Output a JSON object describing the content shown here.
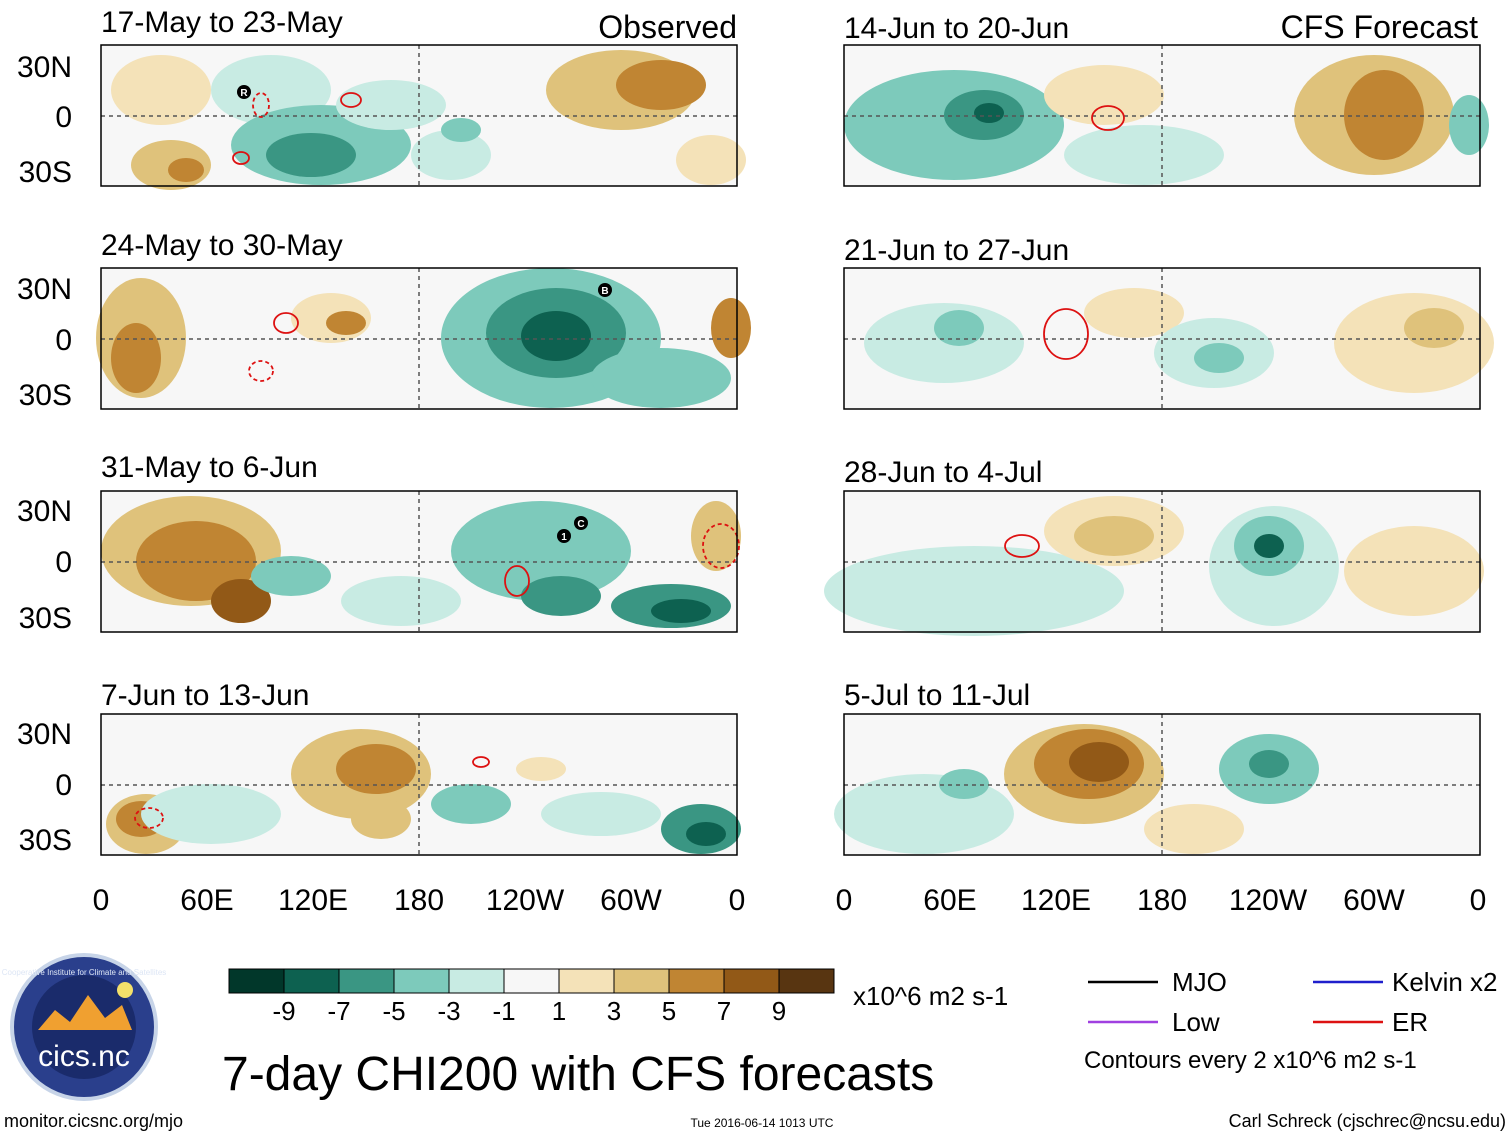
{
  "figure": {
    "title": "7-day CHI200 with CFS forecasts",
    "source_url": "monitor.cicsnc.org/mjo",
    "timestamp": "Tue 2016-06-14 1013 UTC",
    "author": "Carl Schreck (cjschrec@ncsu.edu)",
    "logo": {
      "text": "cics.nc",
      "ring_text": "Cooperative Institute for Climate and Satellites"
    }
  },
  "columns": {
    "observed_label": "Observed",
    "forecast_label": "CFS Forecast"
  },
  "observed_panels": [
    {
      "label": "17-May to 23-May"
    },
    {
      "label": "24-May to 30-May"
    },
    {
      "label": "31-May to 6-Jun"
    },
    {
      "label": "7-Jun to 13-Jun"
    }
  ],
  "forecast_panels": [
    {
      "label": "14-Jun to 20-Jun"
    },
    {
      "label": "21-Jun to 27-Jun"
    },
    {
      "label": "28-Jun to 4-Jul"
    },
    {
      "label": "5-Jul to 11-Jul"
    }
  ],
  "axes": {
    "lat_ticks": [
      "30N",
      "0",
      "30S"
    ],
    "lon_ticks": [
      "0",
      "60E",
      "120E",
      "180",
      "120W",
      "60W",
      "0"
    ]
  },
  "colorbar": {
    "units": "x10^6 m2 s-1",
    "tick_labels": [
      "-9",
      "-7",
      "-5",
      "-3",
      "-1",
      "1",
      "3",
      "5",
      "7",
      "9"
    ],
    "colors": [
      "#01372a",
      "#0d6150",
      "#3a9683",
      "#7dcabb",
      "#c8ebe3",
      "#f7f7f7",
      "#f4e2b8",
      "#dfc27b",
      "#c08533",
      "#925917",
      "#583511"
    ]
  },
  "legend": {
    "items": [
      {
        "label": "MJO",
        "color": "#000000"
      },
      {
        "label": "Kelvin x2",
        "color": "#1f1fcc"
      },
      {
        "label": "Low",
        "color": "#a040e0"
      },
      {
        "label": "ER",
        "color": "#dd1111"
      }
    ],
    "contour_note": "Contours every 2 x10^6 m2 s-1"
  },
  "storm_markers": [
    "R",
    "B",
    "C",
    "1"
  ]
}
